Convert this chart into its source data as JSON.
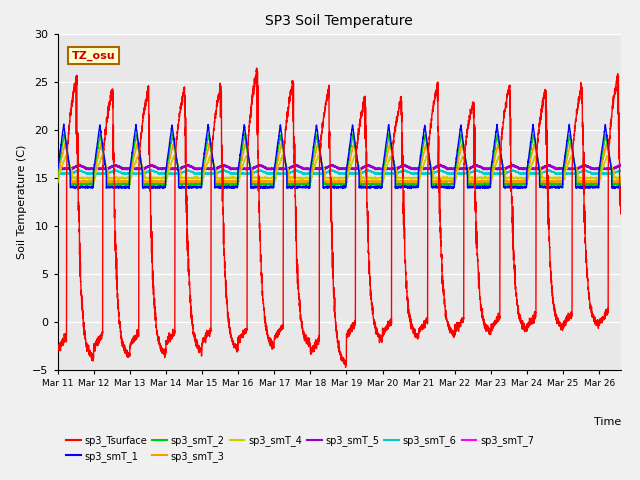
{
  "title": "SP3 Soil Temperature",
  "ylabel": "Soil Temperature (C)",
  "xlabel": "Time",
  "tz_label": "TZ_osu",
  "ylim": [
    -5,
    30
  ],
  "series_colors": {
    "sp3_Tsurface": "#ff0000",
    "sp3_smT_1": "#0000ff",
    "sp3_smT_2": "#00cc00",
    "sp3_smT_3": "#ff9900",
    "sp3_smT_4": "#cccc00",
    "sp3_smT_5": "#9900cc",
    "sp3_smT_6": "#00cccc",
    "sp3_smT_7": "#ff00ff"
  },
  "n_days": 16,
  "x_tick_labels": [
    "Mar 11",
    "Mar 12",
    "Mar 13",
    "Mar 14",
    "Mar 15",
    "Mar 16",
    "Mar 17",
    "Mar 18",
    "Mar 19",
    "Mar 20",
    "Mar 21",
    "Mar 22",
    "Mar 23",
    "Mar 24",
    "Mar 25",
    "Mar 26"
  ],
  "fig_bg": "#f0f0f0",
  "ax_bg": "#e8e8e8",
  "grid_color": "#ffffff"
}
